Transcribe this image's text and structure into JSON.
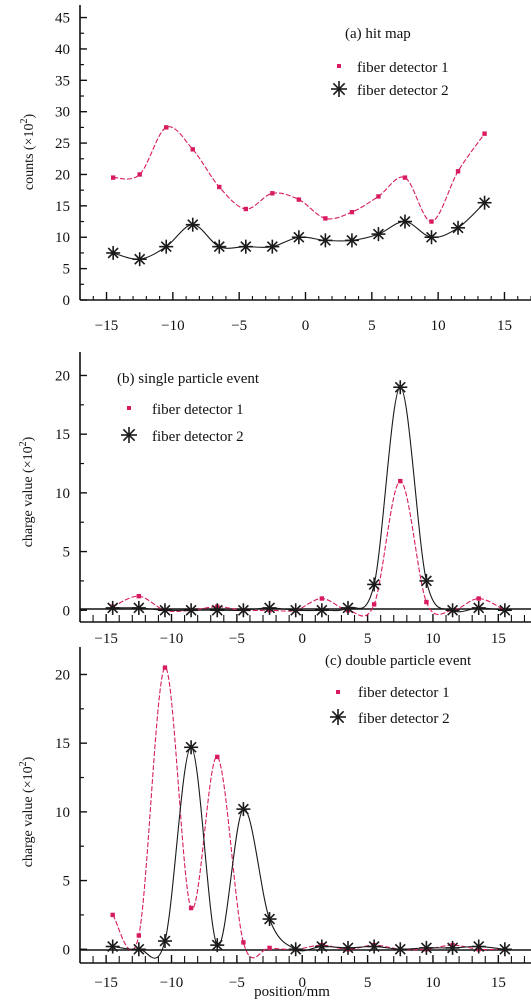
{
  "colors": {
    "series1": "#d81b60",
    "series2": "#1a1a1a",
    "axis": "#111111"
  },
  "xlabel": "position/mm",
  "chart_data": [
    {
      "type": "line",
      "title": "(a)  hit map",
      "ylabel_text": "counts",
      "ylabel_unit": "(×10",
      "ylabel_exp": "2",
      "ylabel_close": ")",
      "xlim": [
        -17,
        17
      ],
      "ylim": [
        0,
        47
      ],
      "xticks": [
        -15,
        -10,
        -5,
        0,
        5,
        10,
        15
      ],
      "yticks": [
        0,
        5,
        10,
        15,
        20,
        25,
        30,
        35,
        40,
        45
      ],
      "series": [
        {
          "name": "fiber detector 1",
          "x": [
            -14.5,
            -12.5,
            -10.5,
            -8.5,
            -6.5,
            -4.5,
            -2.5,
            -0.5,
            1.5,
            3.5,
            5.5,
            7.5,
            9.5,
            11.5,
            13.5
          ],
          "y": [
            19.5,
            20,
            27.5,
            24,
            18,
            14.5,
            17,
            16,
            13,
            14,
            16.5,
            19.5,
            12.5,
            20.5,
            26.5
          ]
        },
        {
          "name": "fiber detector 2",
          "x": [
            -14.5,
            -12.5,
            -10.5,
            -8.5,
            -6.5,
            -4.5,
            -2.5,
            -0.5,
            1.5,
            3.5,
            5.5,
            7.5,
            9.5,
            11.5,
            13.5
          ],
          "y": [
            7.5,
            6.5,
            8.5,
            12,
            8.5,
            8.5,
            8.5,
            10,
            9.5,
            9.5,
            10.5,
            12.5,
            10,
            11.5,
            15.5
          ]
        }
      ]
    },
    {
      "type": "line",
      "title": "(b) single particle event",
      "ylabel_text": "charge value",
      "ylabel_unit": "(×10",
      "ylabel_exp": "2",
      "ylabel_close": ")",
      "xlim": [
        -17,
        17.5
      ],
      "ylim": [
        -1,
        22
      ],
      "xticks": [
        -15,
        -10,
        -5,
        0,
        5,
        10,
        15
      ],
      "yticks": [
        0,
        5,
        10,
        15,
        20
      ],
      "series": [
        {
          "name": "fiber detector 1",
          "x": [
            -14.5,
            -12.5,
            -10.5,
            -8.5,
            -6.5,
            -4.5,
            -2.5,
            -0.5,
            1.5,
            3.5,
            5.5,
            7.5,
            9.5,
            11.5,
            13.5,
            15.5
          ],
          "y": [
            0.3,
            1.2,
            0,
            0,
            0.3,
            0,
            0,
            0,
            1.0,
            0,
            0.5,
            11,
            0.7,
            0,
            1.0,
            0
          ]
        },
        {
          "name": "fiber detector 2",
          "x": [
            -14.5,
            -12.5,
            -10.5,
            -8.5,
            -6.5,
            -4.5,
            -2.5,
            -0.5,
            1.5,
            3.5,
            5.5,
            7.5,
            9.5,
            11.5,
            13.5,
            15.5
          ],
          "y": [
            0.2,
            0.2,
            0,
            0,
            0,
            0,
            0.2,
            0,
            0,
            0.2,
            2.2,
            19,
            2.5,
            0,
            0.2,
            0
          ]
        }
      ]
    },
    {
      "type": "line",
      "title": "(c) double particle event",
      "ylabel_text": "charge value",
      "ylabel_unit": "(×10",
      "ylabel_exp": "2",
      "ylabel_close": ")",
      "xlim": [
        -17,
        17.5
      ],
      "ylim": [
        -1,
        22
      ],
      "xticks": [
        -15,
        -10,
        -5,
        0,
        5,
        10,
        15
      ],
      "yticks": [
        0,
        5,
        10,
        15,
        20
      ],
      "series": [
        {
          "name": "fiber detector 1",
          "x": [
            -14.5,
            -12.5,
            -10.5,
            -8.5,
            -6.5,
            -4.5,
            -2.5,
            -0.5,
            1.5,
            3.5,
            5.5,
            7.5,
            9.5,
            11.5,
            13.5,
            15.5
          ],
          "y": [
            2.5,
            1.0,
            20.5,
            3.0,
            14,
            0.5,
            0.1,
            0,
            0.3,
            0,
            0.3,
            0,
            0,
            0.3,
            0,
            0
          ]
        },
        {
          "name": "fiber detector 2",
          "x": [
            -14.5,
            -12.5,
            -10.5,
            -8.5,
            -6.5,
            -4.5,
            -2.5,
            -0.5,
            1.5,
            3.5,
            5.5,
            7.5,
            9.5,
            11.5,
            13.5,
            15.5
          ],
          "y": [
            0.2,
            0,
            0.6,
            14.7,
            0.3,
            10.2,
            2.2,
            0,
            0.2,
            0.1,
            0.2,
            0,
            0.1,
            0.1,
            0.2,
            0
          ]
        }
      ]
    }
  ]
}
